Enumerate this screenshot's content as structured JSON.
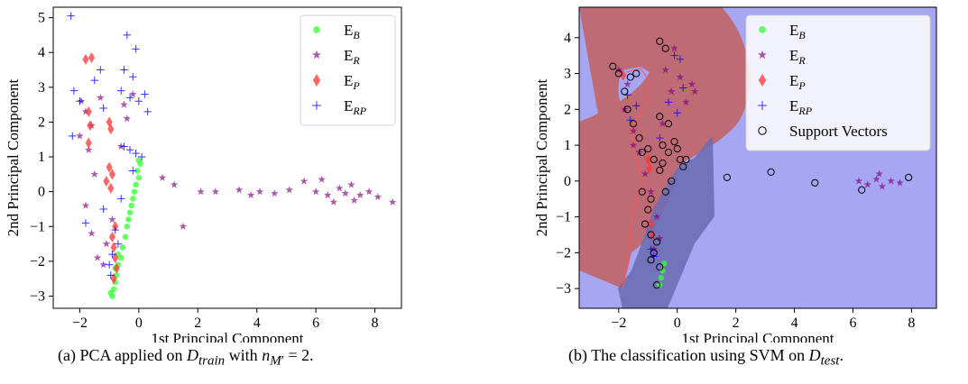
{
  "chart_data": [
    {
      "type": "scatter",
      "caption": "(a) PCA applied on D_train with n_M' = 2.",
      "xlabel": "1st Principal Component",
      "ylabel": "2nd Principal Component",
      "xlim": [
        -2.9,
        8.9
      ],
      "ylim": [
        -3.35,
        5.3
      ],
      "xticks": [
        -2,
        0,
        2,
        4,
        6,
        8
      ],
      "yticks": [
        -3,
        -2,
        -1,
        0,
        1,
        2,
        3,
        4,
        5
      ],
      "legend": {
        "placement": "top-right",
        "entries": [
          "E_B",
          "E_R",
          "E_P",
          "E_RP"
        ]
      },
      "series": [
        {
          "name": "E_B",
          "marker": "circle",
          "color": "#33ff33",
          "points": [
            [
              0.0,
              0.9
            ],
            [
              0.05,
              0.8
            ],
            [
              -0.05,
              0.6
            ],
            [
              0.0,
              0.4
            ],
            [
              -0.1,
              0.2
            ],
            [
              -0.15,
              0.0
            ],
            [
              -0.2,
              -0.2
            ],
            [
              -0.25,
              -0.4
            ],
            [
              -0.3,
              -0.6
            ],
            [
              -0.35,
              -0.8
            ],
            [
              -0.4,
              -1.0
            ],
            [
              -0.45,
              -1.3
            ],
            [
              -0.55,
              -1.6
            ],
            [
              -0.6,
              -1.9
            ],
            [
              -0.7,
              -2.1
            ],
            [
              -0.75,
              -2.4
            ],
            [
              -0.8,
              -2.6
            ],
            [
              -0.85,
              -2.8
            ],
            [
              -0.9,
              -3.0
            ],
            [
              -0.95,
              -2.9
            ],
            [
              -0.8,
              -2.2
            ],
            [
              -0.7,
              -1.8
            ]
          ]
        },
        {
          "name": "E_R",
          "marker": "star",
          "color": "#800080",
          "points": [
            [
              -1.8,
              2.3
            ],
            [
              -1.6,
              1.9
            ],
            [
              -1.7,
              1.2
            ],
            [
              -1.5,
              0.5
            ],
            [
              -1.8,
              -0.4
            ],
            [
              -1.6,
              -1.2
            ],
            [
              -1.4,
              -1.9
            ],
            [
              -1.2,
              -2.1
            ],
            [
              -1.1,
              -1.5
            ],
            [
              -0.9,
              -0.8
            ],
            [
              -0.6,
              1.3
            ],
            [
              -0.4,
              2.1
            ],
            [
              -0.2,
              2.8
            ],
            [
              -0.5,
              2.5
            ],
            [
              0.8,
              0.4
            ],
            [
              1.2,
              0.2
            ],
            [
              1.5,
              -1.0
            ],
            [
              2.1,
              0.0
            ],
            [
              2.6,
              0.0
            ],
            [
              3.4,
              0.05
            ],
            [
              3.8,
              -0.1
            ],
            [
              4.1,
              0.0
            ],
            [
              4.6,
              -0.05
            ],
            [
              5.1,
              0.05
            ],
            [
              5.6,
              0.3
            ],
            [
              6.0,
              0.0
            ],
            [
              6.4,
              -0.1
            ],
            [
              6.8,
              0.1
            ],
            [
              7.0,
              -0.05
            ],
            [
              7.2,
              0.2
            ],
            [
              7.5,
              -0.1
            ],
            [
              7.8,
              0.0
            ],
            [
              8.1,
              -0.15
            ],
            [
              8.6,
              -0.3
            ],
            [
              6.2,
              0.35
            ],
            [
              6.6,
              -0.3
            ],
            [
              7.3,
              -0.25
            ],
            [
              -1.95,
              2.6
            ],
            [
              -2.0,
              1.6
            ],
            [
              -1.3,
              2.7
            ]
          ]
        },
        {
          "name": "E_P",
          "marker": "diamond",
          "color": "#ff3333",
          "points": [
            [
              -1.8,
              3.8
            ],
            [
              -1.6,
              3.85
            ],
            [
              -1.7,
              2.3
            ],
            [
              -1.65,
              1.9
            ],
            [
              -1.7,
              1.4
            ],
            [
              -1.0,
              0.7
            ],
            [
              -0.9,
              0.5
            ],
            [
              -1.1,
              0.3
            ],
            [
              -0.95,
              0.1
            ],
            [
              -0.8,
              -1.0
            ],
            [
              -0.9,
              -1.3
            ],
            [
              -0.85,
              -1.6
            ],
            [
              -0.8,
              -1.9
            ],
            [
              -0.75,
              -2.2
            ],
            [
              -0.85,
              -2.5
            ],
            [
              -1.0,
              2.0
            ],
            [
              -0.95,
              1.8
            ]
          ]
        },
        {
          "name": "E_RP",
          "marker": "plus",
          "color": "#0000ff",
          "points": [
            [
              -2.3,
              5.05
            ],
            [
              -0.4,
              4.5
            ],
            [
              -0.1,
              4.1
            ],
            [
              -2.2,
              2.9
            ],
            [
              -2.0,
              2.6
            ],
            [
              -1.5,
              3.2
            ],
            [
              -1.2,
              2.4
            ],
            [
              -0.6,
              2.9
            ],
            [
              -0.3,
              2.7
            ],
            [
              0.0,
              2.6
            ],
            [
              0.2,
              2.8
            ],
            [
              0.3,
              2.3
            ],
            [
              -2.25,
              1.6
            ],
            [
              -0.5,
              1.3
            ],
            [
              -0.3,
              1.2
            ],
            [
              -0.1,
              1.1
            ],
            [
              0.1,
              1.0
            ],
            [
              -0.2,
              0.6
            ],
            [
              -0.6,
              -0.2
            ],
            [
              -1.2,
              -0.5
            ],
            [
              -1.8,
              -0.9
            ],
            [
              -0.8,
              -1.1
            ],
            [
              -0.7,
              -1.5
            ],
            [
              -0.9,
              -1.8
            ],
            [
              -1.0,
              -2.1
            ],
            [
              -0.95,
              -2.4
            ],
            [
              -0.5,
              3.5
            ],
            [
              -0.2,
              3.3
            ],
            [
              -1.3,
              3.5
            ]
          ]
        }
      ]
    },
    {
      "type": "scatter",
      "caption": "(b) The classification using SVM on D_test.",
      "xlabel": "1st Principal Component",
      "ylabel": "2nd Principal Component",
      "xlim": [
        -3.35,
        8.85
      ],
      "ylim": [
        -3.55,
        4.85
      ],
      "xticks": [
        -2,
        0,
        2,
        4,
        6,
        8
      ],
      "yticks": [
        -3,
        -2,
        -1,
        0,
        1,
        2,
        3,
        4
      ],
      "legend": {
        "placement": "top-right",
        "entries": [
          "E_B",
          "E_R",
          "E_P",
          "E_RP",
          "Support Vectors"
        ]
      },
      "decision_regions": [
        "#c26060",
        "#a6a6f2",
        "#6e6eb6"
      ],
      "series": [
        {
          "name": "E_B",
          "marker": "circle",
          "color": "#33ff33",
          "points": [
            [
              -0.5,
              -2.5
            ],
            [
              -0.55,
              -2.7
            ],
            [
              -0.45,
              -2.3
            ],
            [
              -0.6,
              -2.9
            ]
          ]
        },
        {
          "name": "E_R",
          "marker": "star",
          "color": "#800080",
          "points": [
            [
              -2.0,
              3.1
            ],
            [
              -1.7,
              2.7
            ],
            [
              -1.8,
              2.0
            ],
            [
              -1.5,
              1.4
            ],
            [
              -1.3,
              0.8
            ],
            [
              -1.1,
              0.2
            ],
            [
              -0.9,
              -0.3
            ],
            [
              -0.7,
              -1.0
            ],
            [
              -0.6,
              -1.6
            ],
            [
              -0.8,
              -1.9
            ],
            [
              -0.5,
              1.6
            ],
            [
              -0.2,
              2.5
            ],
            [
              -0.4,
              3.1
            ],
            [
              0.1,
              2.9
            ],
            [
              0.3,
              2.2
            ],
            [
              -0.1,
              3.7
            ],
            [
              0.5,
              2.7
            ],
            [
              0.6,
              2.5
            ],
            [
              6.2,
              0.0
            ],
            [
              6.5,
              -0.1
            ],
            [
              6.8,
              0.05
            ],
            [
              7.0,
              -0.15
            ],
            [
              7.3,
              0.0
            ],
            [
              7.6,
              -0.05
            ],
            [
              6.9,
              0.2
            ],
            [
              -1.5,
              1.0
            ]
          ]
        },
        {
          "name": "E_P",
          "marker": "diamond",
          "color": "#ff3333",
          "points": [
            [
              -1.85,
              2.95
            ],
            [
              -1.0,
              0.6
            ],
            [
              -0.95,
              0.35
            ],
            [
              -0.9,
              -1.2
            ],
            [
              -0.85,
              -1.5
            ]
          ]
        },
        {
          "name": "E_RP",
          "marker": "plus",
          "color": "#0000ff",
          "points": [
            [
              -0.1,
              3.5
            ],
            [
              0.1,
              3.4
            ],
            [
              0.2,
              2.6
            ],
            [
              -0.3,
              2.2
            ],
            [
              0.0,
              1.9
            ],
            [
              -1.7,
              2.4
            ],
            [
              -1.4,
              2.1
            ],
            [
              -1.6,
              1.7
            ],
            [
              -0.9,
              -1.9
            ],
            [
              -0.8,
              -2.1
            ],
            [
              -0.6,
              1.2
            ]
          ]
        },
        {
          "name": "Support Vectors",
          "marker": "open-circle",
          "color": "#000000",
          "points": [
            [
              -2.2,
              3.2
            ],
            [
              -2.0,
              3.0
            ],
            [
              -1.6,
              2.9
            ],
            [
              -1.4,
              3.0
            ],
            [
              -0.6,
              3.9
            ],
            [
              -0.4,
              3.7
            ],
            [
              -1.8,
              2.5
            ],
            [
              -1.7,
              2.0
            ],
            [
              -1.5,
              1.6
            ],
            [
              -1.3,
              1.2
            ],
            [
              -1.2,
              0.8
            ],
            [
              -1.0,
              0.9
            ],
            [
              -0.8,
              0.6
            ],
            [
              -0.6,
              0.3
            ],
            [
              -0.5,
              1.0
            ],
            [
              -0.3,
              0.8
            ],
            [
              -0.1,
              1.1
            ],
            [
              0.0,
              0.9
            ],
            [
              0.1,
              0.6
            ],
            [
              0.2,
              0.4
            ],
            [
              -0.2,
              0.0
            ],
            [
              -0.4,
              -0.3
            ],
            [
              -1.2,
              -0.3
            ],
            [
              -1.0,
              -0.8
            ],
            [
              -1.1,
              -1.2
            ],
            [
              -0.9,
              -1.5
            ],
            [
              -0.7,
              -1.7
            ],
            [
              -0.8,
              -2.0
            ],
            [
              -0.9,
              -2.2
            ],
            [
              -0.6,
              -2.4
            ],
            [
              -0.7,
              -2.9
            ],
            [
              -0.3,
              1.6
            ],
            [
              -0.6,
              1.8
            ],
            [
              0.3,
              0.6
            ],
            [
              1.7,
              0.1
            ],
            [
              3.2,
              0.25
            ],
            [
              4.7,
              -0.05
            ],
            [
              6.3,
              -0.25
            ],
            [
              7.9,
              0.1
            ],
            [
              -0.9,
              -0.5
            ],
            [
              -0.5,
              0.5
            ]
          ]
        }
      ]
    }
  ]
}
